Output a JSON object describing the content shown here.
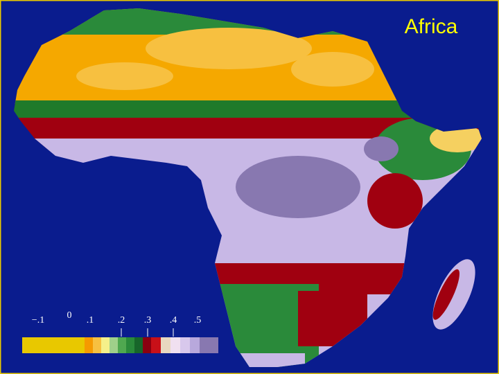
{
  "title": "Africa",
  "legend": {
    "labels": [
      "−.1",
      "0",
      ".1",
      ".2",
      ".3",
      ".4",
      ".5"
    ],
    "colors": [
      "#e8c800",
      "#f59a00",
      "#f7c040",
      "#f5f08a",
      "#9fd08a",
      "#4fa850",
      "#2a8a3a",
      "#17662a",
      "#8a0010",
      "#c81018",
      "#e8d8c0",
      "#f0e0f0",
      "#d8c8ec",
      "#b8a8dc",
      "#8878b0"
    ]
  }
}
